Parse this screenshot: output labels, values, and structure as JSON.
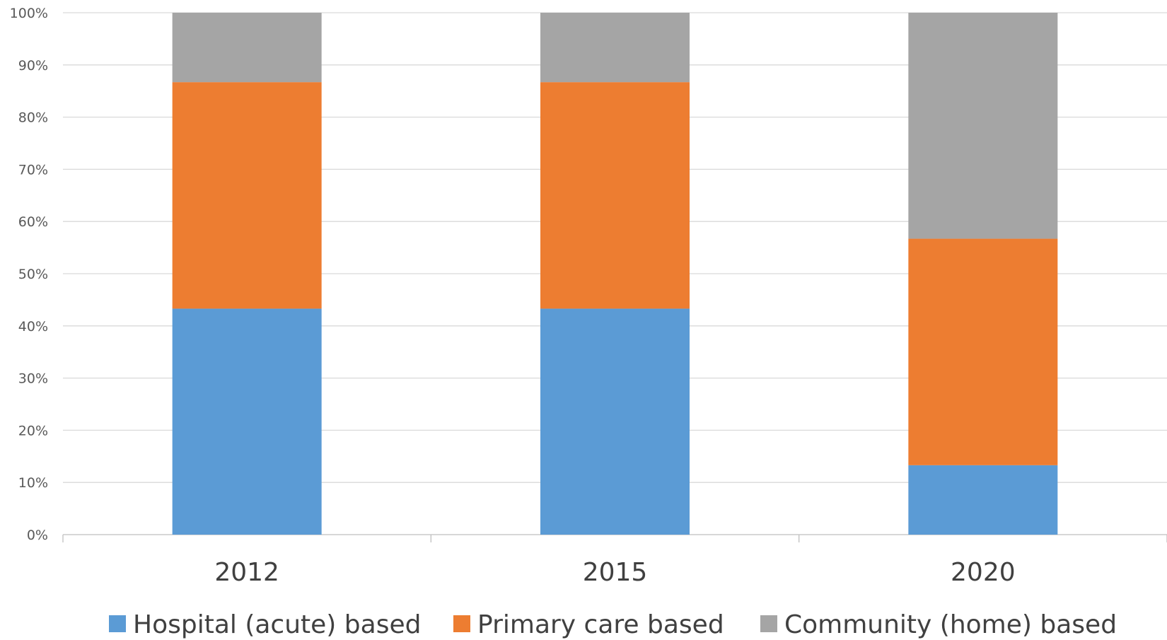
{
  "chart_data": {
    "type": "bar",
    "stacked": true,
    "categories": [
      "2012",
      "2015",
      "2020"
    ],
    "series": [
      {
        "name": "Hospital (acute) based",
        "values": [
          43.3,
          43.3,
          13.3
        ],
        "color": "#5B9BD5"
      },
      {
        "name": "Primary care based",
        "values": [
          43.4,
          43.4,
          43.4
        ],
        "color": "#ED7D31"
      },
      {
        "name": "Community (home) based",
        "values": [
          13.3,
          13.3,
          43.3
        ],
        "color": "#A5A5A5"
      }
    ],
    "ylim": [
      0,
      100
    ],
    "yticks": [
      "0%",
      "10%",
      "20%",
      "30%",
      "40%",
      "50%",
      "60%",
      "70%",
      "80%",
      "90%",
      "100%"
    ],
    "grid": true,
    "legend_position": "bottom"
  }
}
